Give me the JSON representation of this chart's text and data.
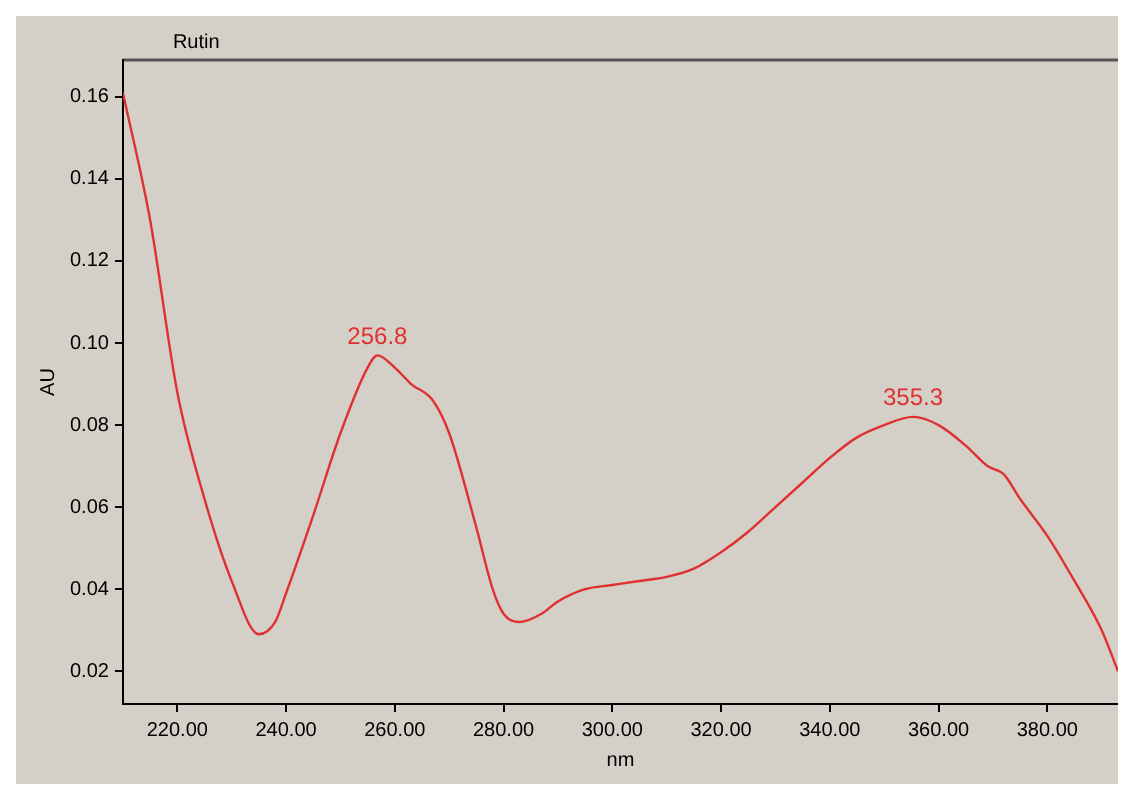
{
  "chart_data": {
    "type": "line",
    "title": "Rutin",
    "xlabel": "nm",
    "ylabel": "AU",
    "xlim": [
      210,
      393
    ],
    "ylim": [
      0.012,
      0.169
    ],
    "xticks": [
      {
        "value": 220,
        "label": "220.00"
      },
      {
        "value": 240,
        "label": "240.00"
      },
      {
        "value": 260,
        "label": "260.00"
      },
      {
        "value": 280,
        "label": "280.00"
      },
      {
        "value": 300,
        "label": "300.00"
      },
      {
        "value": 320,
        "label": "320.00"
      },
      {
        "value": 340,
        "label": "340.00"
      },
      {
        "value": 360,
        "label": "360.00"
      },
      {
        "value": 380,
        "label": "380.00"
      }
    ],
    "yticks": [
      {
        "value": 0.02,
        "label": "0.02"
      },
      {
        "value": 0.04,
        "label": "0.04"
      },
      {
        "value": 0.06,
        "label": "0.06"
      },
      {
        "value": 0.08,
        "label": "0.08"
      },
      {
        "value": 0.1,
        "label": "0.10"
      },
      {
        "value": 0.12,
        "label": "0.12"
      },
      {
        "value": 0.14,
        "label": "0.14"
      },
      {
        "value": 0.16,
        "label": "0.16"
      }
    ],
    "grid": false,
    "legend": false,
    "marker": "none",
    "line_style": "solid",
    "series": [
      {
        "color": "#e03030",
        "x": [
          210,
          215,
          220,
          225,
          230,
          235,
          238,
          240,
          245,
          250,
          255,
          256.8,
          260,
          263,
          267,
          270,
          275,
          278,
          280,
          283,
          287,
          290,
          295,
          300,
          305,
          310,
          315,
          320,
          325,
          330,
          335,
          340,
          345,
          350,
          355.3,
          360,
          365,
          369,
          372,
          375,
          380,
          385,
          390,
          393
        ],
        "values": [
          0.161,
          0.13,
          0.088,
          0.062,
          0.042,
          0.029,
          0.032,
          0.039,
          0.058,
          0.078,
          0.094,
          0.097,
          0.094,
          0.09,
          0.086,
          0.078,
          0.055,
          0.04,
          0.034,
          0.032,
          0.034,
          0.037,
          0.04,
          0.041,
          0.042,
          0.043,
          0.045,
          0.049,
          0.054,
          0.06,
          0.066,
          0.072,
          0.077,
          0.08,
          0.082,
          0.08,
          0.075,
          0.07,
          0.068,
          0.062,
          0.053,
          0.042,
          0.03,
          0.02
        ]
      }
    ],
    "annotations": [
      {
        "text": "256.8",
        "x": 256.8,
        "y": 0.097
      },
      {
        "text": "355.3",
        "x": 355.3,
        "y": 0.082
      }
    ]
  }
}
